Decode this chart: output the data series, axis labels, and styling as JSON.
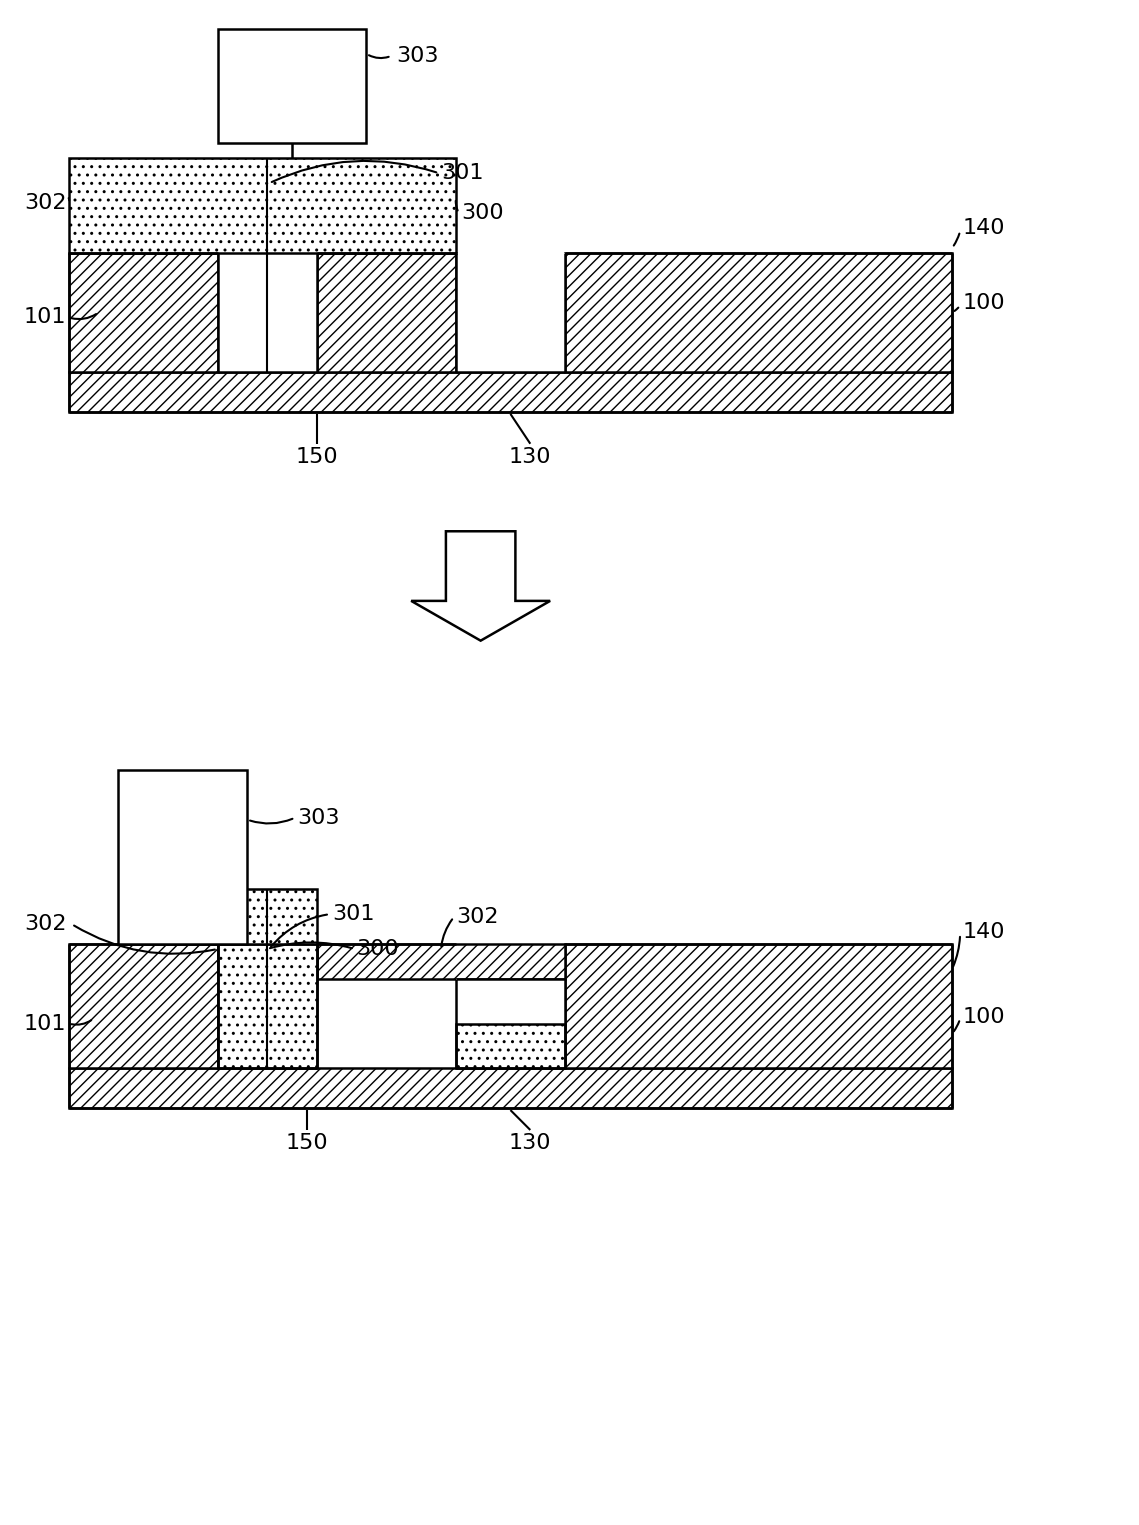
{
  "bg_color": "#ffffff",
  "lc": "#000000",
  "lw": 1.8,
  "fig_width": 11.39,
  "fig_height": 15.25,
  "dpi": 100,
  "fs": 16
}
